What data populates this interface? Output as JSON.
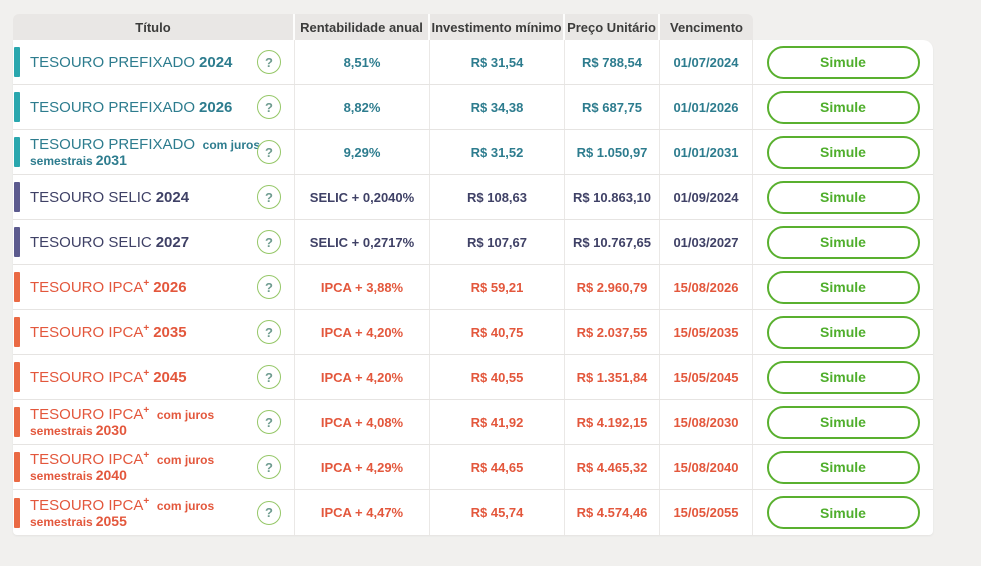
{
  "table": {
    "headers": {
      "titulo": "Título",
      "rentabilidade": "Rentabilidade anual",
      "investimento": "Investimento mínimo",
      "preco": "Preço Unitário",
      "vencimento": "Vencimento"
    },
    "help_icon": "?",
    "simulate_label": "Simule",
    "colors": {
      "prefixado_text": "#2d7c8e",
      "prefixado_bar": "#2aa7ae",
      "selic_text": "#3f4166",
      "selic_bar": "#5c5b8e",
      "ipca_text": "#e3573c",
      "ipca_bar": "#ea6a44",
      "button_green": "#59b02f",
      "header_bg": "#e9e7e5",
      "page_bg": "#f1f0ee"
    },
    "rows": [
      {
        "type": "prefixado",
        "title": "TESOURO PREFIXADO",
        "title_sup": "",
        "year1": "2024",
        "subtitle": "",
        "year2": "",
        "rate": "8,51%",
        "min": "R$ 31,54",
        "price": "R$ 788,54",
        "maturity": "01/07/2024"
      },
      {
        "type": "prefixado",
        "title": "TESOURO PREFIXADO",
        "title_sup": "",
        "year1": "2026",
        "subtitle": "",
        "year2": "",
        "rate": "8,82%",
        "min": "R$ 34,38",
        "price": "R$ 687,75",
        "maturity": "01/01/2026"
      },
      {
        "type": "prefixado",
        "title": "TESOURO PREFIXADO",
        "title_sup": "",
        "year1": "",
        "subtitle": "com juros semestrais",
        "year2": "2031",
        "rate": "9,29%",
        "min": "R$ 31,52",
        "price": "R$ 1.050,97",
        "maturity": "01/01/2031"
      },
      {
        "type": "selic",
        "title": "TESOURO SELIC",
        "title_sup": "",
        "year1": "2024",
        "subtitle": "",
        "year2": "",
        "rate": "SELIC + 0,2040%",
        "min": "R$ 108,63",
        "price": "R$ 10.863,10",
        "maturity": "01/09/2024"
      },
      {
        "type": "selic",
        "title": "TESOURO SELIC",
        "title_sup": "",
        "year1": "2027",
        "subtitle": "",
        "year2": "",
        "rate": "SELIC + 0,2717%",
        "min": "R$ 107,67",
        "price": "R$ 10.767,65",
        "maturity": "01/03/2027"
      },
      {
        "type": "ipca",
        "title": "TESOURO IPCA",
        "title_sup": "+",
        "year1": "2026",
        "subtitle": "",
        "year2": "",
        "rate": "IPCA + 3,88%",
        "min": "R$ 59,21",
        "price": "R$ 2.960,79",
        "maturity": "15/08/2026"
      },
      {
        "type": "ipca",
        "title": "TESOURO IPCA",
        "title_sup": "+",
        "year1": "2035",
        "subtitle": "",
        "year2": "",
        "rate": "IPCA + 4,20%",
        "min": "R$ 40,75",
        "price": "R$ 2.037,55",
        "maturity": "15/05/2035"
      },
      {
        "type": "ipca",
        "title": "TESOURO IPCA",
        "title_sup": "+",
        "year1": "2045",
        "subtitle": "",
        "year2": "",
        "rate": "IPCA + 4,20%",
        "min": "R$ 40,55",
        "price": "R$ 1.351,84",
        "maturity": "15/05/2045"
      },
      {
        "type": "ipca",
        "title": "TESOURO IPCA",
        "title_sup": "+",
        "year1": "",
        "subtitle": "com juros semestrais",
        "year2": "2030",
        "rate": "IPCA + 4,08%",
        "min": "R$ 41,92",
        "price": "R$ 4.192,15",
        "maturity": "15/08/2030"
      },
      {
        "type": "ipca",
        "title": "TESOURO IPCA",
        "title_sup": "+",
        "year1": "",
        "subtitle": "com juros semestrais",
        "year2": "2040",
        "rate": "IPCA + 4,29%",
        "min": "R$ 44,65",
        "price": "R$ 4.465,32",
        "maturity": "15/08/2040"
      },
      {
        "type": "ipca",
        "title": "TESOURO IPCA",
        "title_sup": "+",
        "year1": "",
        "subtitle": "com juros semestrais",
        "year2": "2055",
        "rate": "IPCA + 4,47%",
        "min": "R$ 45,74",
        "price": "R$ 4.574,46",
        "maturity": "15/05/2055"
      }
    ]
  }
}
